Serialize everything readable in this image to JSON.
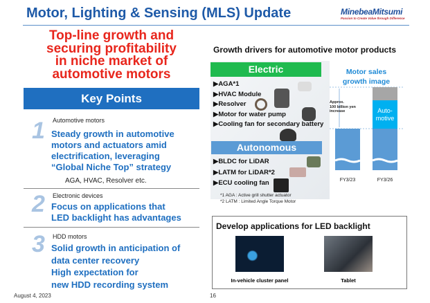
{
  "header": {
    "title": "Motor, Lighting & Sensing (MLS) Update",
    "logo": {
      "name": "MinebeaMitsumi",
      "tagline": "Passion to Create Value through Difference"
    }
  },
  "headline": [
    "Top-line growth and",
    "securing profitability",
    "in niche market of",
    "automotive motors"
  ],
  "key_points": {
    "label": "Key Points",
    "items": [
      {
        "number": "1",
        "category": "Automotive motors",
        "lines": [
          "Steady growth in automotive",
          "motors and actuators amid",
          "electrification, leveraging",
          "“Global Niche Top” strategy"
        ],
        "sub": "AGA, HVAC, Resolver etc."
      },
      {
        "number": "2",
        "category": "Electronic devices",
        "lines": [
          "Focus on applications that",
          "LED backlight has advantages"
        ]
      },
      {
        "number": "3",
        "category": "HDD motors",
        "lines": [
          "Solid growth in anticipation of",
          "data center recovery",
          "High expectation for",
          "new HDD recording system"
        ]
      }
    ]
  },
  "growth": {
    "title": "Growth drivers for automotive motor products",
    "electric": {
      "label": "Electric",
      "items": [
        "AGA*1",
        "HVAC Module",
        "Resolver",
        "Motor for water pump",
        "Cooling fan for secondary battery"
      ]
    },
    "autonomous": {
      "label": "Autonomous",
      "items": [
        "BLDC for LiDAR",
        "LATM for LiDAR*2",
        "ECU cooling fan"
      ]
    },
    "footnotes": [
      "*1 AGA : Active grill shutter actuator",
      "*2 LATM : Limited Angle Torque Motor"
    ]
  },
  "chart": {
    "title_lines": [
      "Motor sales",
      "growth image"
    ],
    "annotation": [
      "Approx.",
      "100 billion yen",
      "increase"
    ],
    "segment_label": [
      "Auto-",
      "motive"
    ],
    "categories": [
      "FY3/23",
      "FY3/26"
    ],
    "colors": {
      "base": "#5b9bd5",
      "automotive": "#00b0f0",
      "other": "#a6a6a6",
      "electric": "#1fba4f",
      "autonomous": "#5b9bd5"
    }
  },
  "led": {
    "title": "Develop applications for LED backlight",
    "items": [
      "In-vehicle cluster panel",
      "Tablet"
    ]
  },
  "footer": {
    "date": "August 4, 2023",
    "page": "16"
  }
}
